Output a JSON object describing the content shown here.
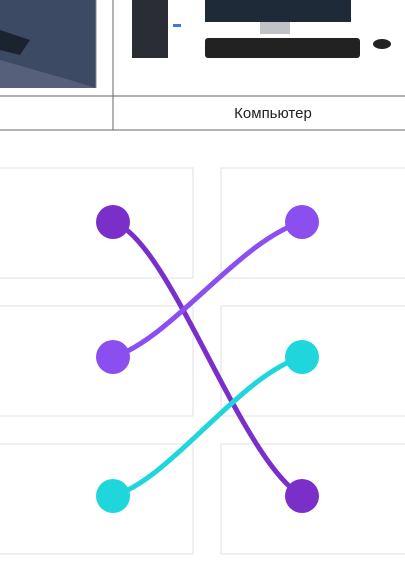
{
  "table": {
    "captions": [
      "Компьютер"
    ]
  }
}
